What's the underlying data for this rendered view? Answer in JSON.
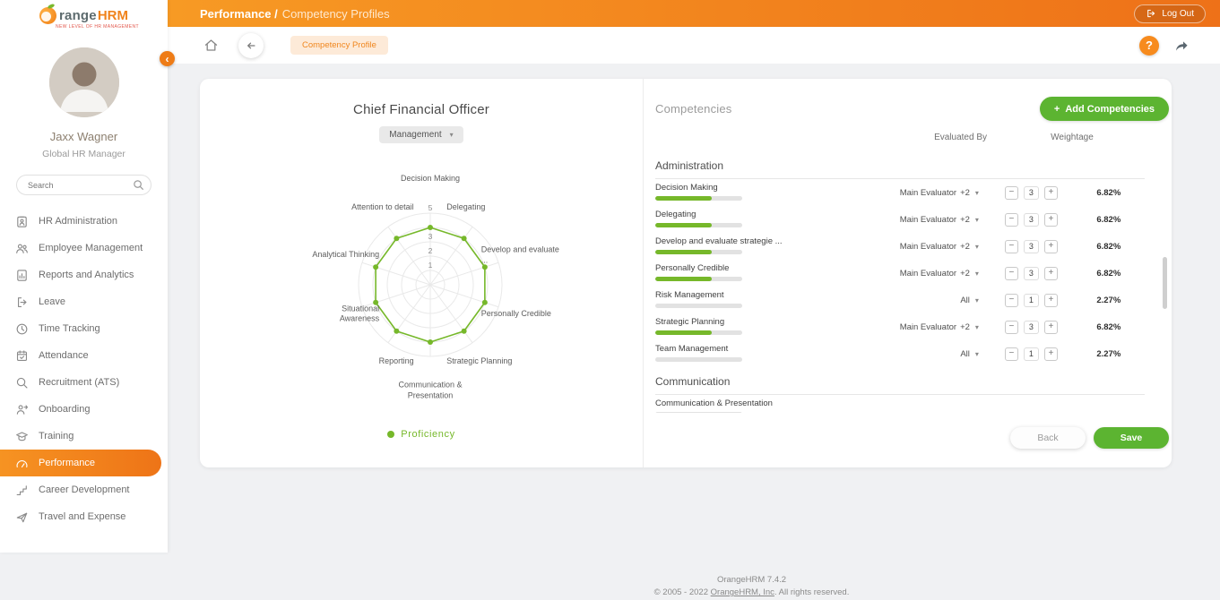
{
  "icons": {
    "caret": "▾",
    "help": "?",
    "plus": "+",
    "collapse": "‹"
  },
  "header": {
    "section": "Performance /",
    "page": "Competency Profiles",
    "logout": "Log Out"
  },
  "toolbar": {
    "tab": "Competency Profile"
  },
  "sidebar": {
    "logo": {
      "range": "range",
      "hrm": "HRM",
      "tagline": "NEW LEVEL OF HR MANAGEMENT"
    },
    "user": {
      "name": "Jaxx Wagner",
      "role": "Global HR Manager"
    },
    "search_placeholder": "Search",
    "items": [
      {
        "label": "HR Administration",
        "icon": "hr-administration-icon",
        "active": false
      },
      {
        "label": "Employee Management",
        "icon": "employee-management-icon",
        "active": false
      },
      {
        "label": "Reports and Analytics",
        "icon": "reports-analytics-icon",
        "active": false
      },
      {
        "label": "Leave",
        "icon": "leave-icon",
        "active": false
      },
      {
        "label": "Time Tracking",
        "icon": "time-tracking-icon",
        "active": false
      },
      {
        "label": "Attendance",
        "icon": "attendance-icon",
        "active": false
      },
      {
        "label": "Recruitment (ATS)",
        "icon": "recruitment-icon",
        "active": false
      },
      {
        "label": "Onboarding",
        "icon": "onboarding-icon",
        "active": false
      },
      {
        "label": "Training",
        "icon": "training-icon",
        "active": false
      },
      {
        "label": "Performance",
        "icon": "performance-icon",
        "active": true
      },
      {
        "label": "Career Development",
        "icon": "career-development-icon",
        "active": false
      },
      {
        "label": "Travel and Expense",
        "icon": "travel-expense-icon",
        "active": false
      }
    ]
  },
  "profile": {
    "job_title": "Chief Financial Officer",
    "category": "Management",
    "legend": "Proficiency"
  },
  "chart_data": {
    "type": "radar",
    "title": "Chief Financial Officer competency radar",
    "categories": [
      "Decision Making",
      "Delegating",
      "Develop and evaluate ...",
      "Personally Credible",
      "Strategic Planning",
      "Communication & Presentation",
      "Reporting",
      "Situational Awareness",
      "Analytical Thinking",
      "Attention to detail"
    ],
    "series": [
      {
        "name": "Proficiency",
        "values": [
          4,
          4,
          4,
          4,
          4,
          4,
          4,
          4,
          4,
          4
        ]
      }
    ],
    "max": 5,
    "tick_labels": [
      1,
      2,
      3,
      5
    ],
    "color": "#76b82a",
    "grid": "circular",
    "legend_position": "bottom"
  },
  "competencies": {
    "title": "Competencies",
    "add_button": "Add Competencies",
    "columns": {
      "evaluated_by": "Evaluated By",
      "weightage": "Weightage"
    },
    "groups": [
      {
        "name": "Administration",
        "rows": [
          {
            "name": "Decision Making",
            "level_percent": 65,
            "evaluated_by": "Main Evaluator",
            "evaluated_extra": "+2",
            "weight": "3",
            "weight_percent": "6.82%"
          },
          {
            "name": "Delegating",
            "level_percent": 65,
            "evaluated_by": "Main Evaluator",
            "evaluated_extra": "+2",
            "weight": "3",
            "weight_percent": "6.82%"
          },
          {
            "name": "Develop and evaluate strategie ...",
            "level_percent": 65,
            "evaluated_by": "Main Evaluator",
            "evaluated_extra": "+2",
            "weight": "3",
            "weight_percent": "6.82%"
          },
          {
            "name": "Personally Credible",
            "level_percent": 65,
            "evaluated_by": "Main Evaluator",
            "evaluated_extra": "+2",
            "weight": "3",
            "weight_percent": "6.82%"
          },
          {
            "name": "Risk Management",
            "level_percent": 0,
            "evaluated_by": "All",
            "evaluated_extra": "",
            "weight": "1",
            "weight_percent": "2.27%"
          },
          {
            "name": "Strategic Planning",
            "level_percent": 65,
            "evaluated_by": "Main Evaluator",
            "evaluated_extra": "+2",
            "weight": "3",
            "weight_percent": "6.82%"
          },
          {
            "name": "Team Management",
            "level_percent": 0,
            "evaluated_by": "All",
            "evaluated_extra": "",
            "weight": "1",
            "weight_percent": "2.27%"
          }
        ]
      },
      {
        "name": "Communication",
        "rows": [
          {
            "name": "Communication & Presentation",
            "level_percent": 0,
            "evaluated_by": "",
            "evaluated_extra": "",
            "weight": "",
            "weight_percent": ""
          }
        ]
      }
    ],
    "back": "Back",
    "save": "Save"
  },
  "footer": {
    "version": "OrangeHRM 7.4.2",
    "copyright_prefix": "© 2005 - 2022 ",
    "copyright_link": "OrangeHRM, Inc",
    "copyright_suffix": ". All rights reserved."
  }
}
